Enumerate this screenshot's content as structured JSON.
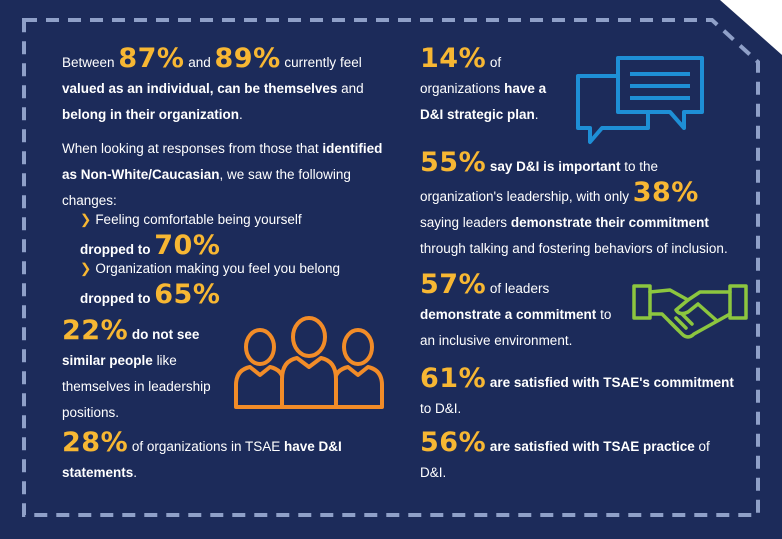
{
  "colors": {
    "background": "#1c2b5a",
    "border_dash": "#8fa0c8",
    "accent_orange": "#f7b733",
    "icon_blue": "#1e8fd6",
    "icon_orange": "#f28c28",
    "icon_green": "#8cc63f"
  },
  "icons": [
    "chat-bubbles-icon",
    "people-group-icon",
    "handshake-icon"
  ],
  "left": {
    "valued": {
      "pre": "Between",
      "pct1": "87%",
      "and": "and",
      "pct2": "89%",
      "post": "currently feel",
      "bold": "valued as an individual, can be themselves",
      "mid": "and",
      "bold2": "belong in their organization",
      "end": "."
    },
    "responses": {
      "intro": "When looking at responses from those that",
      "bold": "identified as Non-White/Caucasian",
      "post": ", we saw the following changes:",
      "item1_label": "Feeling comfortable being yourself",
      "item1_dropped": "dropped to",
      "item1_pct": "70%",
      "item2_label": "Organization making you feel you belong",
      "item2_dropped": "dropped to",
      "item2_pct": "65%"
    },
    "similar": {
      "pct": "22%",
      "bold1": "do not",
      "bold2": "see similar people",
      "post": "like themselves in leadership positions."
    },
    "statements": {
      "pct": "28%",
      "pre": "of organizations in TSAE",
      "bold": "have D&I statements",
      "end": "."
    }
  },
  "right": {
    "strategic": {
      "pct": "14%",
      "pre": "of organizations",
      "bold": "have a D&I strategic plan",
      "end": "."
    },
    "important": {
      "pct": "55%",
      "bold": "say D&I is important",
      "pre": "to the organization's leadership, with only",
      "pct2": "38%",
      "mid": "saying leaders",
      "bold2": "demonstrate their commitment",
      "post": "through talking and fostering behaviors of inclusion."
    },
    "leaders": {
      "pct": "57%",
      "pre": "of leaders",
      "bold": "demonstrate a commitment",
      "post": "to an inclusive environment."
    },
    "satisfied_commitment": {
      "pct": "61%",
      "bold": "are satisfied with TSAE's commitment",
      "post": "to D&I."
    },
    "satisfied_practice": {
      "pct": "56%",
      "bold": "are satisfied with TSAE practice",
      "post": "of D&I."
    }
  }
}
